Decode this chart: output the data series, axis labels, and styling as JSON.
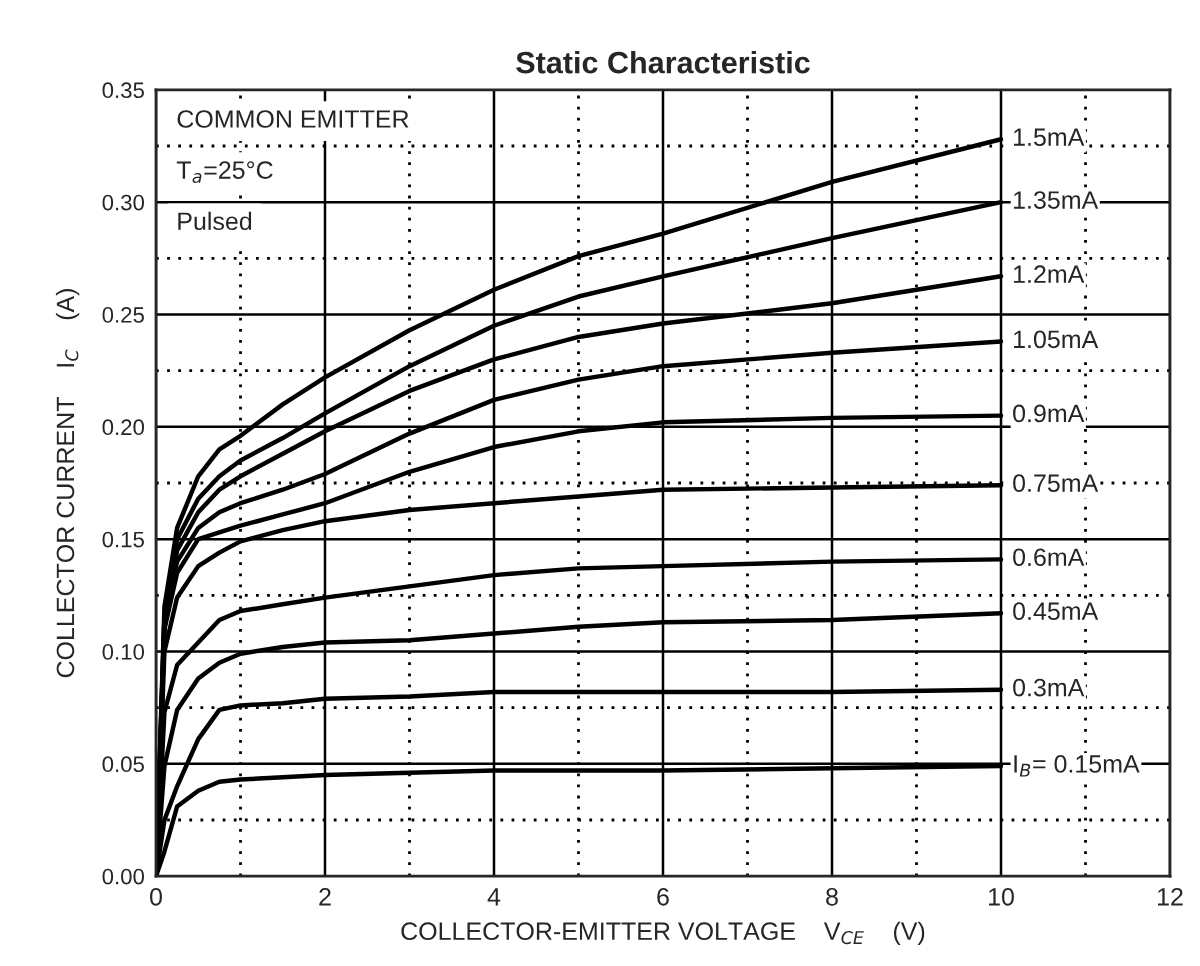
{
  "chart_data": {
    "type": "line",
    "title": "Static Characteristic",
    "xlabel": "COLLECTOR-EMITTER VOLTAGE    V$_{CE}$    (V)",
    "ylabel": "COLLECTOR CURRENT    I$_{C}$    (A)",
    "annotations": [
      "COMMON EMITTER",
      "T$_{a}$=25°C",
      "Pulsed"
    ],
    "x": [
      0,
      0.1,
      0.25,
      0.5,
      0.75,
      1,
      1.5,
      2,
      3,
      4,
      5,
      6,
      8,
      10
    ],
    "series": [
      {
        "name": "1.5mA",
        "color": "#000000",
        "values": [
          0,
          0.12,
          0.155,
          0.178,
          0.19,
          0.196,
          0.21,
          0.222,
          0.243,
          0.261,
          0.276,
          0.286,
          0.309,
          0.328
        ]
      },
      {
        "name": "1.35mA",
        "color": "#000000",
        "values": [
          0,
          0.115,
          0.15,
          0.168,
          0.178,
          0.185,
          0.195,
          0.206,
          0.227,
          0.245,
          0.258,
          0.267,
          0.284,
          0.3
        ]
      },
      {
        "name": "1.2mA",
        "color": "#000000",
        "values": [
          0,
          0.11,
          0.145,
          0.162,
          0.172,
          0.178,
          0.188,
          0.198,
          0.216,
          0.23,
          0.24,
          0.246,
          0.255,
          0.267
        ]
      },
      {
        "name": "1.05mA",
        "color": "#000000",
        "values": [
          0,
          0.115,
          0.14,
          0.155,
          0.162,
          0.166,
          0.172,
          0.179,
          0.197,
          0.212,
          0.221,
          0.227,
          0.233,
          0.238
        ]
      },
      {
        "name": "0.9mA",
        "color": "#000000",
        "values": [
          0,
          0.11,
          0.135,
          0.15,
          0.153,
          0.156,
          0.161,
          0.166,
          0.18,
          0.191,
          0.198,
          0.202,
          0.204,
          0.205
        ]
      },
      {
        "name": "0.75mA",
        "color": "#000000",
        "values": [
          0,
          0.1,
          0.124,
          0.138,
          0.144,
          0.149,
          0.154,
          0.158,
          0.163,
          0.166,
          0.169,
          0.172,
          0.173,
          0.174
        ]
      },
      {
        "name": "0.6mA",
        "color": "#000000",
        "values": [
          0,
          0.073,
          0.094,
          0.104,
          0.114,
          0.118,
          0.121,
          0.124,
          0.129,
          0.134,
          0.137,
          0.138,
          0.14,
          0.141
        ]
      },
      {
        "name": "0.45mA",
        "color": "#000000",
        "values": [
          0,
          0.049,
          0.074,
          0.088,
          0.095,
          0.099,
          0.102,
          0.104,
          0.105,
          0.108,
          0.111,
          0.113,
          0.114,
          0.117
        ]
      },
      {
        "name": "0.3mA",
        "color": "#000000",
        "values": [
          0,
          0.025,
          0.04,
          0.061,
          0.074,
          0.076,
          0.077,
          0.079,
          0.08,
          0.082,
          0.082,
          0.082,
          0.082,
          0.083
        ]
      },
      {
        "name": "I$_{B}$= 0.15mA",
        "color": "#000000",
        "values": [
          0,
          0.011,
          0.031,
          0.038,
          0.042,
          0.043,
          0.044,
          0.045,
          0.046,
          0.047,
          0.047,
          0.047,
          0.048,
          0.049
        ]
      }
    ],
    "xlim": [
      0,
      12
    ],
    "xticks": [
      0,
      {
        "value": 1,
        "label": null
      },
      2,
      {
        "value": 3,
        "label": null
      },
      4,
      {
        "value": 5,
        "label": null
      },
      6,
      {
        "value": 7,
        "label": null
      },
      8,
      {
        "value": 9,
        "label": null
      },
      10,
      {
        "value": 11,
        "label": null
      },
      12
    ],
    "ylim": [
      0,
      0.35
    ],
    "yticks": [
      {
        "value": 0,
        "label": "0.00"
      },
      {
        "value": 0.025,
        "label": null
      },
      {
        "value": 0.05,
        "label": "0.05"
      },
      {
        "value": 0.075,
        "label": null
      },
      {
        "value": 0.1,
        "label": "0.10"
      },
      {
        "value": 0.125,
        "label": null
      },
      {
        "value": 0.15,
        "label": "0.15"
      },
      {
        "value": 0.175,
        "label": null
      },
      {
        "value": 0.2,
        "label": "0.20"
      },
      {
        "value": 0.225,
        "label": null
      },
      {
        "value": 0.25,
        "label": "0.25"
      },
      {
        "value": 0.275,
        "label": null
      },
      {
        "value": 0.3,
        "label": "0.30"
      },
      {
        "value": 0.325,
        "label": null
      },
      {
        "value": 0.35,
        "label": "0.35"
      }
    ],
    "grid": true,
    "legend": false,
    "marker": "none",
    "line_style": "solid"
  }
}
